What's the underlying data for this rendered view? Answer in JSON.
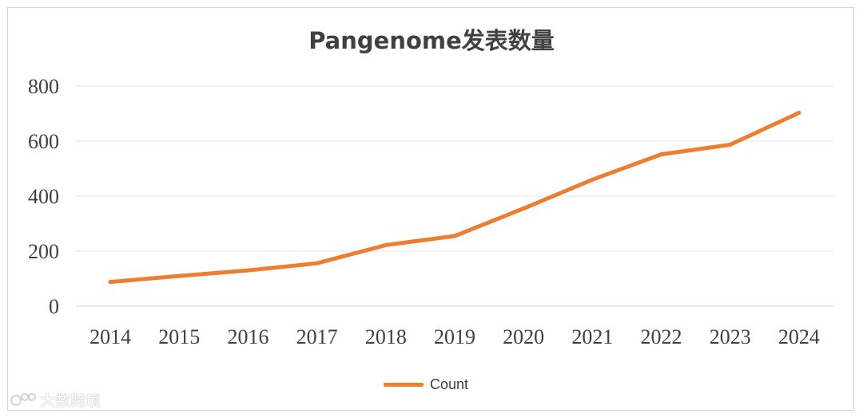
{
  "chart_data": {
    "type": "line",
    "title": "Pangenome发表数量",
    "categories": [
      "2014",
      "2015",
      "2016",
      "2017",
      "2018",
      "2019",
      "2020",
      "2021",
      "2022",
      "2023",
      "2024"
    ],
    "series": [
      {
        "name": "Count",
        "values": [
          88,
          110,
          130,
          156,
          222,
          255,
          355,
          460,
          552,
          587,
          703
        ],
        "color": "#ED7D31"
      }
    ],
    "y_ticks": [
      0,
      200,
      400,
      600,
      800
    ],
    "ylim": [
      0,
      800
    ],
    "grid": true,
    "legend_position": "bottom-center"
  },
  "watermark": {
    "text": "大数跨境",
    "icon": "logo-icon"
  }
}
